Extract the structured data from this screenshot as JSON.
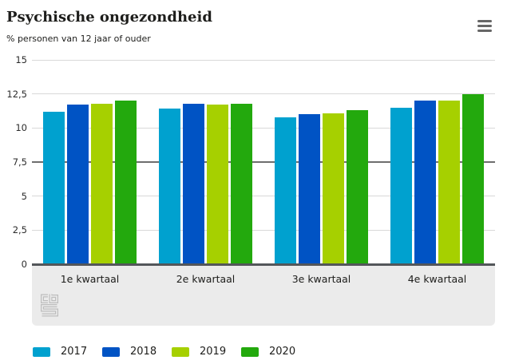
{
  "header": {
    "title": "Psychische ongezondheid",
    "subtitle": "% personen van 12 jaar of ouder",
    "menu_icon": "hamburger-menu-icon"
  },
  "chart_data": {
    "type": "bar",
    "title": "Psychische ongezondheid",
    "subtitle": "% personen van 12 jaar of ouder",
    "categories": [
      "1e kwartaal",
      "2e kwartaal",
      "3e kwartaal",
      "4e kwartaal"
    ],
    "series": [
      {
        "name": "2017",
        "color": "#00a1cf",
        "values": [
          11.2,
          11.4,
          10.8,
          11.5
        ]
      },
      {
        "name": "2018",
        "color": "#0053c4",
        "values": [
          11.7,
          11.8,
          11.0,
          12.0
        ]
      },
      {
        "name": "2019",
        "color": "#a6d000",
        "values": [
          11.8,
          11.7,
          11.1,
          12.0
        ]
      },
      {
        "name": "2020",
        "color": "#23a90d",
        "values": [
          12.0,
          11.8,
          11.3,
          12.5
        ]
      }
    ],
    "ylim": [
      0,
      15
    ],
    "yticks": [
      0,
      2.5,
      5,
      7.5,
      10,
      12.5,
      15
    ],
    "ytick_labels": [
      "0",
      "2,5",
      "5",
      "7,5",
      "10",
      "12,5",
      "15"
    ],
    "emphasized_gridline": 7.5,
    "grid": true,
    "legend_position": "bottom",
    "xlabel": "",
    "ylabel": "% personen van 12 jaar of ouder"
  },
  "footer": {
    "logo": "cbs-logo"
  }
}
